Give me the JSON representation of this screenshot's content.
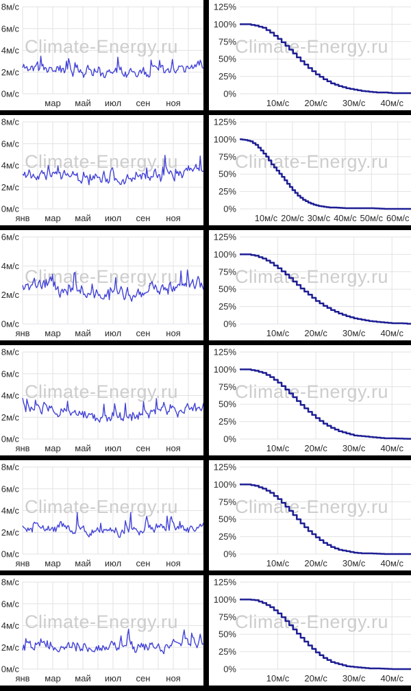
{
  "watermark": {
    "text": "Climate-Energy.ru",
    "color": "#cdcdcd"
  },
  "colors": {
    "timeseries_line": "#4242d6",
    "cdf_line": "#1d1d94",
    "grid": "#e2e2e4",
    "axis_text": "#2b2b2b",
    "divider": "#000000",
    "chart_bg": "#ffffff"
  },
  "chart_data": [
    {
      "type": "line",
      "kind": "timeseries",
      "name": "wind-speed-daily-row-1",
      "ylabel": "wind speed",
      "y_unit": "м/с",
      "ylim": [
        0,
        8
      ],
      "y_tick_values": [
        0,
        2,
        4,
        6,
        8
      ],
      "y_tick_labels": [
        "0м/с",
        "2м/с",
        "4м/с",
        "6м/с",
        "8м/с"
      ],
      "x_tick_labels": [
        "мар",
        "май",
        "июл",
        "сен",
        "ноя"
      ],
      "x_tick_months": [
        2,
        4,
        6,
        8,
        10
      ],
      "n_points": 170,
      "gen": {
        "seed": 11,
        "mean": 2.2,
        "season_amp": 0.3,
        "noise": 0.95,
        "spike_p": 0.12,
        "spike_max": 2.4,
        "min": 0.5,
        "max": 6.1
      }
    },
    {
      "type": "line",
      "kind": "cdf",
      "name": "wind-speed-exceedance-row-1",
      "ylim": [
        0,
        125
      ],
      "y_tick_values": [
        0,
        25,
        50,
        75,
        100,
        125
      ],
      "y_tick_labels": [
        "0%",
        "25%",
        "50%",
        "75%",
        "100%",
        "125%"
      ],
      "xlim": [
        0,
        45
      ],
      "x_tick_values": [
        10,
        20,
        30,
        40
      ],
      "x_tick_labels": [
        "10м/с",
        "20м/с",
        "30м/с",
        "40м/с"
      ],
      "points": [
        [
          0,
          100
        ],
        [
          2,
          100
        ],
        [
          4,
          98
        ],
        [
          6,
          95
        ],
        [
          8,
          88
        ],
        [
          10,
          79
        ],
        [
          12,
          69
        ],
        [
          14,
          58
        ],
        [
          16,
          47
        ],
        [
          18,
          37
        ],
        [
          20,
          28
        ],
        [
          22,
          21
        ],
        [
          24,
          15
        ],
        [
          26,
          11
        ],
        [
          28,
          8
        ],
        [
          30,
          6
        ],
        [
          32,
          4
        ],
        [
          34,
          3
        ],
        [
          36,
          2
        ],
        [
          38,
          2
        ],
        [
          40,
          1
        ],
        [
          42,
          1
        ],
        [
          45,
          1
        ]
      ]
    },
    {
      "type": "line",
      "kind": "timeseries",
      "name": "wind-speed-daily-row-2",
      "ylabel": "wind speed",
      "y_unit": "м/с",
      "ylim": [
        0,
        8
      ],
      "y_tick_values": [
        0,
        2,
        4,
        6,
        8
      ],
      "y_tick_labels": [
        "0м/с",
        "2м/с",
        "4м/с",
        "6м/с",
        "8м/с"
      ],
      "x_tick_labels": [
        "янв",
        "мар",
        "май",
        "июл",
        "сен",
        "ноя"
      ],
      "x_tick_months": [
        0,
        2,
        4,
        6,
        8,
        10
      ],
      "n_points": 170,
      "gen": {
        "seed": 22,
        "mean": 3.0,
        "season_amp": 0.45,
        "noise": 1.0,
        "spike_p": 0.12,
        "spike_max": 2.8,
        "min": 0.5,
        "max": 6.9
      }
    },
    {
      "type": "line",
      "kind": "cdf",
      "name": "wind-speed-exceedance-row-2",
      "ylim": [
        0,
        125
      ],
      "y_tick_values": [
        0,
        25,
        50,
        75,
        100,
        125
      ],
      "y_tick_labels": [
        "0%",
        "25%",
        "50%",
        "75%",
        "100%",
        "125%"
      ],
      "xlim": [
        0,
        65
      ],
      "x_tick_values": [
        10,
        20,
        30,
        40,
        50,
        60
      ],
      "x_tick_labels": [
        "10м/с",
        "20м/с",
        "30м/с",
        "40м/с",
        "50м/с",
        "60м/с"
      ],
      "points": [
        [
          0,
          100
        ],
        [
          2,
          99
        ],
        [
          4,
          97
        ],
        [
          6,
          92
        ],
        [
          8,
          84
        ],
        [
          10,
          75
        ],
        [
          12,
          64
        ],
        [
          14,
          55
        ],
        [
          16,
          46
        ],
        [
          18,
          36
        ],
        [
          20,
          27
        ],
        [
          22,
          19
        ],
        [
          24,
          13
        ],
        [
          26,
          9
        ],
        [
          28,
          6
        ],
        [
          30,
          4
        ],
        [
          32,
          3
        ],
        [
          34,
          2
        ],
        [
          36,
          2
        ],
        [
          40,
          1
        ],
        [
          45,
          1
        ],
        [
          50,
          1
        ],
        [
          55,
          0
        ],
        [
          65,
          0
        ]
      ]
    },
    {
      "type": "line",
      "kind": "timeseries",
      "name": "wind-speed-daily-row-3",
      "ylabel": "wind speed",
      "y_unit": "м/с",
      "ylim": [
        0,
        6
      ],
      "y_tick_values": [
        0,
        2,
        4,
        6
      ],
      "y_tick_labels": [
        "0м/с",
        "2м/с",
        "4м/с",
        "6м/с"
      ],
      "x_tick_labels": [
        "янв",
        "мар",
        "май",
        "июл",
        "сен",
        "ноя"
      ],
      "x_tick_months": [
        0,
        2,
        4,
        6,
        8,
        10
      ],
      "n_points": 170,
      "gen": {
        "seed": 33,
        "mean": 2.3,
        "season_amp": 0.35,
        "noise": 0.9,
        "spike_p": 0.11,
        "spike_max": 2.2,
        "min": 0.55,
        "max": 5.8
      }
    },
    {
      "type": "line",
      "kind": "cdf",
      "name": "wind-speed-exceedance-row-3",
      "ylim": [
        0,
        125
      ],
      "y_tick_values": [
        0,
        25,
        50,
        75,
        100,
        125
      ],
      "y_tick_labels": [
        "0%",
        "25%",
        "50%",
        "75%",
        "100%",
        "125%"
      ],
      "xlim": [
        0,
        45
      ],
      "x_tick_values": [
        10,
        20,
        30,
        40
      ],
      "x_tick_labels": [
        "10м/с",
        "20м/с",
        "30м/с",
        "40м/с"
      ],
      "points": [
        [
          0,
          100
        ],
        [
          2,
          100
        ],
        [
          4,
          98
        ],
        [
          6,
          94
        ],
        [
          8,
          88
        ],
        [
          10,
          80
        ],
        [
          12,
          71
        ],
        [
          14,
          61
        ],
        [
          16,
          51
        ],
        [
          18,
          42
        ],
        [
          20,
          33
        ],
        [
          22,
          26
        ],
        [
          24,
          20
        ],
        [
          26,
          15
        ],
        [
          28,
          11
        ],
        [
          30,
          8
        ],
        [
          32,
          6
        ],
        [
          34,
          4
        ],
        [
          36,
          3
        ],
        [
          38,
          2
        ],
        [
          40,
          1
        ],
        [
          42,
          1
        ],
        [
          45,
          0
        ]
      ]
    },
    {
      "type": "line",
      "kind": "timeseries",
      "name": "wind-speed-daily-row-4",
      "ylabel": "wind speed",
      "y_unit": "м/с",
      "ylim": [
        0,
        8
      ],
      "y_tick_values": [
        0,
        2,
        4,
        6,
        8
      ],
      "y_tick_labels": [
        "0м/с",
        "2м/с",
        "4м/с",
        "6м/с",
        "8м/с"
      ],
      "x_tick_labels": [
        "янв",
        "мар",
        "май",
        "июл",
        "сен",
        "ноя"
      ],
      "x_tick_months": [
        0,
        2,
        4,
        6,
        8,
        10
      ],
      "n_points": 170,
      "gen": {
        "seed": 44,
        "mean": 2.4,
        "season_amp": 0.45,
        "noise": 0.95,
        "spike_p": 0.11,
        "spike_max": 2.3,
        "min": 0.55,
        "max": 6.0
      }
    },
    {
      "type": "line",
      "kind": "cdf",
      "name": "wind-speed-exceedance-row-4",
      "ylim": [
        0,
        125
      ],
      "y_tick_values": [
        0,
        25,
        50,
        75,
        100,
        125
      ],
      "y_tick_labels": [
        "0%",
        "25%",
        "50%",
        "75%",
        "100%",
        "125%"
      ],
      "xlim": [
        0,
        45
      ],
      "x_tick_values": [
        10,
        20,
        30,
        40
      ],
      "x_tick_labels": [
        "10м/с",
        "20м/с",
        "30м/с",
        "40м/с"
      ],
      "points": [
        [
          0,
          100
        ],
        [
          2,
          100
        ],
        [
          4,
          98
        ],
        [
          6,
          95
        ],
        [
          8,
          89
        ],
        [
          10,
          81
        ],
        [
          12,
          71
        ],
        [
          14,
          60
        ],
        [
          16,
          49
        ],
        [
          18,
          39
        ],
        [
          20,
          30
        ],
        [
          22,
          22
        ],
        [
          24,
          16
        ],
        [
          26,
          11
        ],
        [
          28,
          8
        ],
        [
          30,
          5
        ],
        [
          32,
          4
        ],
        [
          34,
          3
        ],
        [
          36,
          2
        ],
        [
          38,
          1
        ],
        [
          40,
          1
        ],
        [
          45,
          0
        ]
      ]
    },
    {
      "type": "line",
      "kind": "timeseries",
      "name": "wind-speed-daily-row-5",
      "ylabel": "wind speed",
      "y_unit": "м/с",
      "ylim": [
        0,
        8
      ],
      "y_tick_values": [
        0,
        2,
        4,
        6,
        8
      ],
      "y_tick_labels": [
        "0м/с",
        "2м/с",
        "4м/с",
        "6м/с",
        "8м/с"
      ],
      "x_tick_labels": [
        "янв",
        "мар",
        "май",
        "июл",
        "сен",
        "ноя"
      ],
      "x_tick_months": [
        0,
        2,
        4,
        6,
        8,
        10
      ],
      "n_points": 170,
      "gen": {
        "seed": 55,
        "mean": 2.3,
        "season_amp": 0.2,
        "noise": 0.9,
        "spike_p": 0.1,
        "spike_max": 2.2,
        "min": 0.5,
        "max": 6.0
      }
    },
    {
      "type": "line",
      "kind": "cdf",
      "name": "wind-speed-exceedance-row-5",
      "ylim": [
        0,
        125
      ],
      "y_tick_values": [
        0,
        25,
        50,
        75,
        100,
        125
      ],
      "y_tick_labels": [
        "0%",
        "25%",
        "50%",
        "75%",
        "100%",
        "125%"
      ],
      "xlim": [
        0,
        45
      ],
      "x_tick_values": [
        10,
        20,
        30,
        40
      ],
      "x_tick_labels": [
        "10м/с",
        "20м/с",
        "30м/с",
        "40м/с"
      ],
      "points": [
        [
          0,
          100
        ],
        [
          2,
          100
        ],
        [
          4,
          98
        ],
        [
          6,
          94
        ],
        [
          8,
          88
        ],
        [
          10,
          79
        ],
        [
          12,
          68
        ],
        [
          14,
          56
        ],
        [
          16,
          44
        ],
        [
          18,
          33
        ],
        [
          20,
          24
        ],
        [
          22,
          16
        ],
        [
          24,
          10
        ],
        [
          26,
          6
        ],
        [
          28,
          4
        ],
        [
          30,
          2
        ],
        [
          32,
          1
        ],
        [
          34,
          1
        ],
        [
          38,
          0
        ],
        [
          45,
          0
        ]
      ]
    },
    {
      "type": "line",
      "kind": "timeseries",
      "name": "wind-speed-daily-row-6",
      "ylabel": "wind speed",
      "y_unit": "м/с",
      "ylim": [
        0,
        8
      ],
      "y_tick_values": [
        0,
        2,
        4,
        6,
        8
      ],
      "y_tick_labels": [
        "0м/с",
        "2м/с",
        "4м/с",
        "6м/с",
        "8м/с"
      ],
      "x_tick_labels": [
        "янв",
        "мар",
        "май",
        "июл",
        "сен",
        "ноя"
      ],
      "x_tick_months": [
        0,
        2,
        4,
        6,
        8,
        10
      ],
      "n_points": 170,
      "gen": {
        "seed": 66,
        "mean": 2.1,
        "season_amp": 0.15,
        "noise": 0.9,
        "spike_p": 0.1,
        "spike_max": 2.0,
        "min": 0.35,
        "max": 6.1
      }
    },
    {
      "type": "line",
      "kind": "cdf",
      "name": "wind-speed-exceedance-row-6",
      "ylim": [
        0,
        125
      ],
      "y_tick_values": [
        0,
        25,
        50,
        75,
        100,
        125
      ],
      "y_tick_labels": [
        "0%",
        "25%",
        "50%",
        "75%",
        "100%",
        "125%"
      ],
      "xlim": [
        0,
        45
      ],
      "x_tick_values": [
        10,
        20,
        30,
        40
      ],
      "x_tick_labels": [
        "10м/с",
        "20м/с",
        "30м/с",
        "40м/с"
      ],
      "points": [
        [
          0,
          100
        ],
        [
          2,
          100
        ],
        [
          4,
          99
        ],
        [
          6,
          95
        ],
        [
          8,
          89
        ],
        [
          10,
          80
        ],
        [
          12,
          69
        ],
        [
          14,
          57
        ],
        [
          16,
          45
        ],
        [
          18,
          34
        ],
        [
          20,
          24
        ],
        [
          22,
          16
        ],
        [
          24,
          10
        ],
        [
          26,
          7
        ],
        [
          28,
          4
        ],
        [
          30,
          3
        ],
        [
          32,
          2
        ],
        [
          34,
          1
        ],
        [
          36,
          1
        ],
        [
          40,
          0
        ],
        [
          45,
          0
        ]
      ]
    }
  ]
}
